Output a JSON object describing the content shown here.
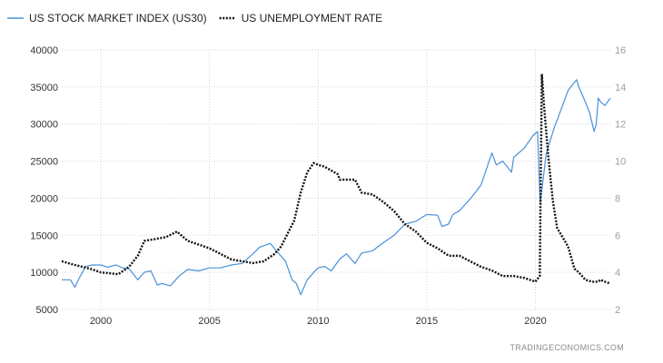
{
  "chart_data": {
    "type": "line",
    "title": "",
    "xlabel": "",
    "ylabel": "",
    "xlim": [
      1998.2,
      2023.45
    ],
    "x_ticks": [
      "2000",
      "2005",
      "2010",
      "2015",
      "2020"
    ],
    "y_left": {
      "lim": [
        5000,
        40000
      ],
      "ticks": [
        "5000",
        "10000",
        "15000",
        "20000",
        "25000",
        "30000",
        "35000",
        "40000"
      ]
    },
    "y_right": {
      "lim": [
        2,
        16
      ],
      "ticks": [
        "2",
        "4",
        "6",
        "8",
        "10",
        "12",
        "14",
        "16"
      ]
    },
    "grid": true,
    "legend_position": "top-left",
    "series": [
      {
        "name": "US STOCK MARKET INDEX (US30)",
        "axis": "left",
        "style": "solid",
        "color": "#4a90d9",
        "x": [
          1998.2,
          1998.6,
          1998.8,
          1999.0,
          1999.3,
          1999.6,
          2000.0,
          2000.3,
          2000.7,
          2001.0,
          2001.3,
          2001.7,
          2002.0,
          2002.3,
          2002.6,
          2002.8,
          2003.2,
          2003.6,
          2004.0,
          2004.5,
          2005.0,
          2005.5,
          2006.0,
          2006.5,
          2007.0,
          2007.3,
          2007.8,
          2008.2,
          2008.5,
          2008.8,
          2009.0,
          2009.2,
          2009.5,
          2009.8,
          2010.0,
          2010.3,
          2010.6,
          2011.0,
          2011.3,
          2011.7,
          2012.0,
          2012.5,
          2013.0,
          2013.5,
          2014.0,
          2014.5,
          2015.0,
          2015.5,
          2015.7,
          2016.0,
          2016.2,
          2016.5,
          2017.0,
          2017.5,
          2018.0,
          2018.2,
          2018.5,
          2018.9,
          2019.0,
          2019.5,
          2019.9,
          2020.1,
          2020.22,
          2020.5,
          2020.9,
          2021.0,
          2021.5,
          2021.9,
          2022.0,
          2022.3,
          2022.5,
          2022.7,
          2022.8,
          2022.9,
          2023.0,
          2023.2,
          2023.45
        ],
        "values": [
          9000,
          9000,
          8000,
          9200,
          10800,
          11000,
          11000,
          10700,
          11000,
          10600,
          10500,
          9000,
          10000,
          10200,
          8300,
          8500,
          8200,
          9500,
          10400,
          10200,
          10600,
          10600,
          11000,
          11200,
          12500,
          13400,
          13900,
          12500,
          11500,
          9000,
          8500,
          7000,
          9000,
          10000,
          10600,
          10800,
          10200,
          11800,
          12500,
          11200,
          12600,
          12900,
          14000,
          15000,
          16500,
          16900,
          17800,
          17700,
          16200,
          16500,
          17800,
          18300,
          19900,
          21800,
          26100,
          24500,
          25000,
          23500,
          25500,
          26800,
          28500,
          29000,
          19200,
          26000,
          29800,
          30500,
          34500,
          36000,
          35000,
          33000,
          31500,
          29000,
          30000,
          33500,
          33000,
          32500,
          33500
        ]
      },
      {
        "name": "US UNEMPLOYMENT RATE",
        "axis": "right",
        "style": "dotted",
        "color": "#111111",
        "x": [
          1998.2,
          1998.8,
          1999.5,
          2000.0,
          2000.8,
          2001.3,
          2001.7,
          2002.0,
          2002.5,
          2003.0,
          2003.5,
          2004.0,
          2004.5,
          2005.0,
          2005.5,
          2006.0,
          2006.5,
          2007.0,
          2007.5,
          2008.0,
          2008.3,
          2008.6,
          2008.9,
          2009.2,
          2009.5,
          2009.8,
          2010.0,
          2010.3,
          2010.6,
          2010.9,
          2011.0,
          2011.3,
          2011.7,
          2012.0,
          2012.5,
          2013.0,
          2013.5,
          2014.0,
          2014.5,
          2015.0,
          2015.5,
          2016.0,
          2016.5,
          2017.0,
          2017.5,
          2018.0,
          2018.5,
          2019.0,
          2019.5,
          2020.0,
          2020.2,
          2020.3,
          2020.4,
          2020.6,
          2020.8,
          2021.0,
          2021.2,
          2021.5,
          2021.8,
          2022.0,
          2022.3,
          2022.6,
          2022.9,
          2023.0,
          2023.2,
          2023.45
        ],
        "values": [
          4.6,
          4.4,
          4.2,
          4.0,
          3.9,
          4.3,
          4.9,
          5.7,
          5.8,
          5.9,
          6.2,
          5.7,
          5.5,
          5.3,
          5.0,
          4.7,
          4.6,
          4.5,
          4.6,
          5.0,
          5.4,
          6.1,
          6.8,
          8.3,
          9.4,
          9.9,
          9.8,
          9.7,
          9.5,
          9.3,
          9.0,
          9.0,
          9.0,
          8.3,
          8.2,
          7.8,
          7.3,
          6.6,
          6.2,
          5.6,
          5.3,
          4.9,
          4.9,
          4.6,
          4.3,
          4.1,
          3.8,
          3.8,
          3.7,
          3.5,
          3.8,
          14.7,
          13.0,
          10.2,
          7.9,
          6.4,
          6.0,
          5.4,
          4.2,
          4.0,
          3.6,
          3.5,
          3.5,
          3.6,
          3.5,
          3.4
        ]
      }
    ]
  },
  "credit": "TRADINGECONOMICS.COM"
}
